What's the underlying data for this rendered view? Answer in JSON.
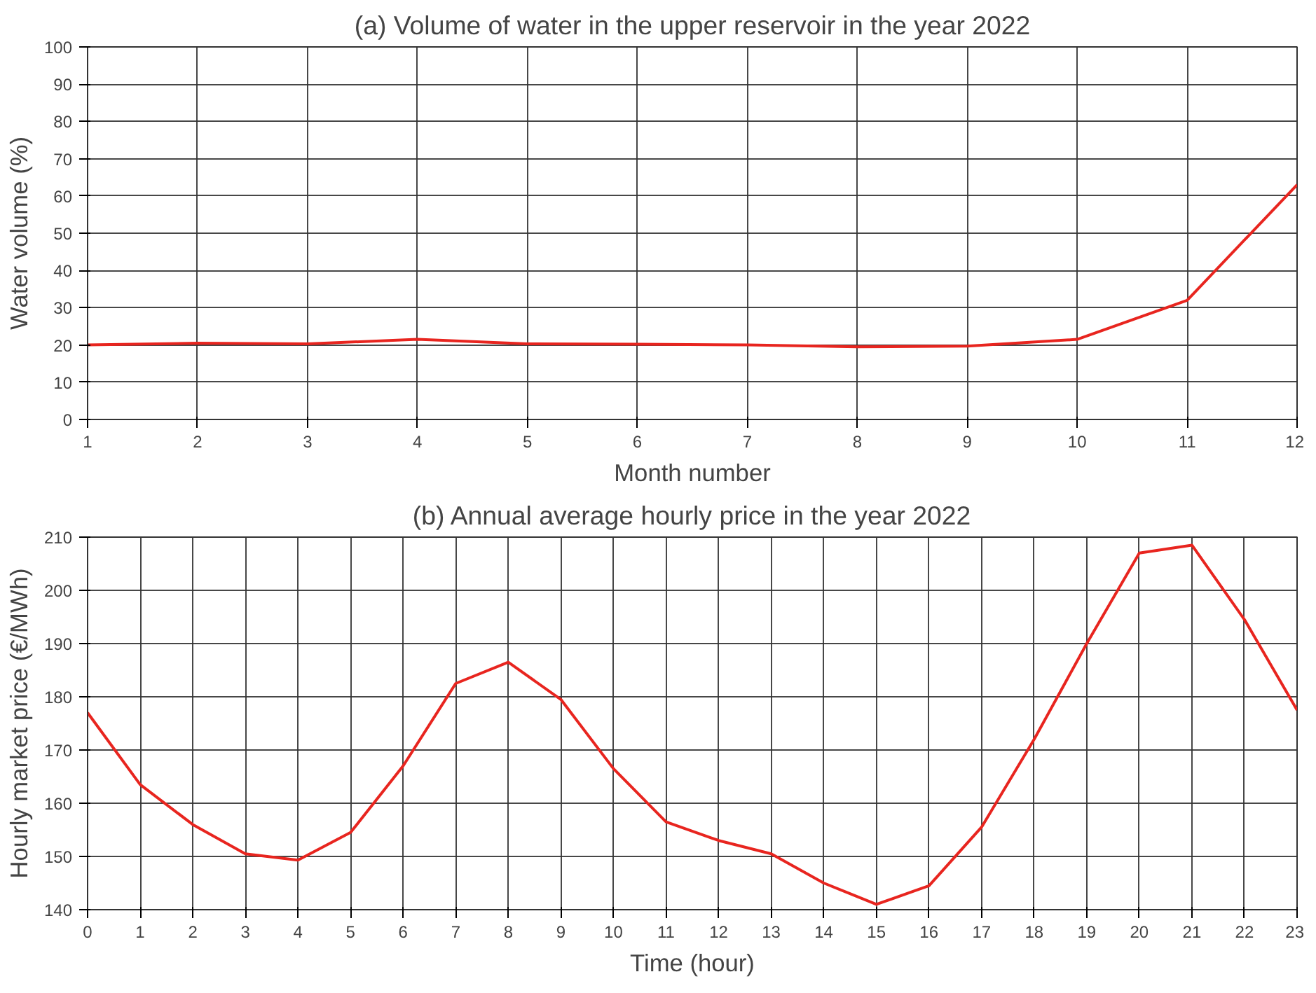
{
  "chart_data": [
    {
      "type": "line",
      "title": "(a) Volume of water in the upper reservoir in the year 2022",
      "xlabel": "Month number",
      "ylabel": "Water volume (%)",
      "x": [
        1,
        2,
        3,
        4,
        5,
        6,
        7,
        8,
        9,
        10,
        11,
        12
      ],
      "series": [
        {
          "color": "#e8251f",
          "values": [
            20,
            20.5,
            20.3,
            21.5,
            20.3,
            20.2,
            20,
            19.5,
            19.7,
            21.5,
            32,
            63
          ]
        }
      ],
      "xlim": [
        1,
        12
      ],
      "xticks": [
        1,
        2,
        3,
        4,
        5,
        6,
        7,
        8,
        9,
        10,
        11,
        12
      ],
      "ylim": [
        0,
        100
      ],
      "yticks": [
        0,
        10,
        20,
        30,
        40,
        50,
        60,
        70,
        80,
        90,
        100
      ],
      "grid": true
    },
    {
      "type": "line",
      "title": "(b) Annual average hourly price in the year 2022",
      "xlabel": "Time (hour)",
      "ylabel": "Hourly market price (€/MWh)",
      "x": [
        0,
        1,
        2,
        3,
        4,
        5,
        6,
        7,
        8,
        9,
        10,
        11,
        12,
        13,
        14,
        15,
        16,
        17,
        18,
        19,
        20,
        21,
        22,
        23
      ],
      "series": [
        {
          "color": "#e8251f",
          "values": [
            177,
            163.5,
            156,
            150.5,
            149.3,
            154.5,
            167,
            182.5,
            186.5,
            179.5,
            166.5,
            156.5,
            153,
            150.5,
            145,
            141,
            144.5,
            155.5,
            172,
            190,
            207,
            208.5,
            194.5,
            177.5
          ]
        }
      ],
      "xlim": [
        0,
        23
      ],
      "xticks": [
        0,
        1,
        2,
        3,
        4,
        5,
        6,
        7,
        8,
        9,
        10,
        11,
        12,
        13,
        14,
        15,
        16,
        17,
        18,
        19,
        20,
        21,
        22,
        23
      ],
      "ylim": [
        140,
        210
      ],
      "yticks": [
        140,
        150,
        160,
        170,
        180,
        190,
        200,
        210
      ],
      "grid": true
    }
  ]
}
